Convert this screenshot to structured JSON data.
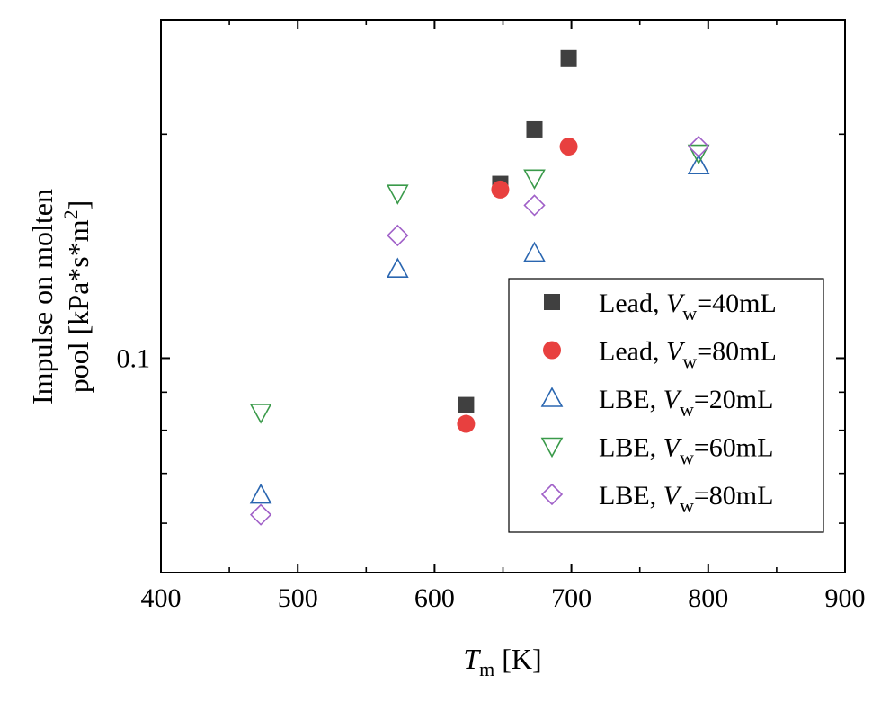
{
  "chart_data": {
    "type": "scatter",
    "title": "",
    "xlabel": {
      "main": "T",
      "sub": "m",
      "rest": " [K]"
    },
    "ylabel": {
      "line1": "Impulse on molten",
      "line2": "pool [kPa*s*m",
      "sup": "2",
      "close": "]"
    },
    "xlim": [
      400,
      900
    ],
    "ylim": [
      0.0515,
      0.285
    ],
    "yscale": "log",
    "x_ticks": [
      400,
      500,
      600,
      700,
      800,
      900
    ],
    "y_tick_labels": [
      {
        "value": 0.1,
        "label": "0.1"
      }
    ],
    "y_minor_ticks": [
      0.06,
      0.07,
      0.08,
      0.09,
      0.2
    ],
    "grid": false,
    "legend_position": "bottom-right",
    "series": [
      {
        "name_pre": "Lead, ",
        "name_var": "V",
        "name_sub": "w",
        "name_post": "=40mL",
        "marker": "filled-square",
        "color": "#404040",
        "x": [
          623,
          648,
          673,
          698
        ],
        "y": [
          0.0865,
          0.1715,
          0.203,
          0.253
        ]
      },
      {
        "name_pre": "Lead, ",
        "name_var": "V",
        "name_sub": "w",
        "name_post": "=80mL",
        "marker": "filled-circle",
        "color": "#e8403f",
        "x": [
          623,
          648,
          698
        ],
        "y": [
          0.0816,
          0.1685,
          0.1925
        ]
      },
      {
        "name_pre": "LBE, ",
        "name_var": "V",
        "name_sub": "w",
        "name_post": "=20mL",
        "marker": "open-triangle-up",
        "color": "#2a66b0",
        "x": [
          473,
          573,
          673,
          793
        ],
        "y": [
          0.0655,
          0.1318,
          0.1385,
          0.1815
        ]
      },
      {
        "name_pre": "LBE, ",
        "name_var": "V",
        "name_sub": "w",
        "name_post": "=60mL",
        "marker": "open-triangle-down",
        "color": "#3a9a4a",
        "x": [
          473,
          573,
          673,
          793
        ],
        "y": [
          0.0845,
          0.1665,
          0.1745,
          0.1885
        ]
      },
      {
        "name_pre": "LBE, ",
        "name_var": "V",
        "name_sub": "w",
        "name_post": "=80mL",
        "marker": "open-diamond",
        "color": "#a060c8",
        "x": [
          473,
          573,
          673,
          793
        ],
        "y": [
          0.0616,
          0.1462,
          0.1605,
          0.1925
        ]
      }
    ]
  }
}
